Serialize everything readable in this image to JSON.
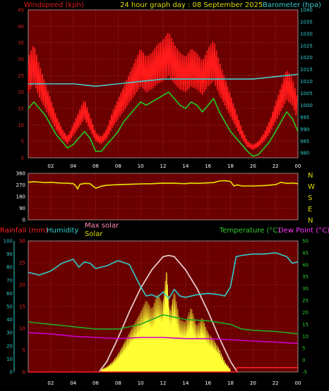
{
  "header": {
    "title": "24 hour graph day : 08 September 2025",
    "left_label": "Windspeed (kph)",
    "right_label": "Barometer (hpa)"
  },
  "colors": {
    "plot_bg": "#6a0000",
    "grid": "#c84a4a",
    "axis_left": "#e01c1c",
    "axis_right": "#33cccc",
    "gust": "#ff1a1a",
    "avg": "#22cc22",
    "baro": "#44cccc",
    "dir": "#e6e600",
    "rain": "#ff2020",
    "humidity": "#33cccc",
    "temp": "#22aa22",
    "dew": "#cc00cc",
    "solar": "#ffff33",
    "max_solar": "#e8c8c8",
    "text_green": "#33cc33",
    "text_magenta": "#ff33ff",
    "text_yellow": "#dddd00",
    "text_pink": "#ff88aa"
  },
  "x_axis": {
    "ticks": [
      "02",
      "04",
      "06",
      "08",
      "10",
      "12",
      "14",
      "16",
      "18",
      "20",
      "22",
      "00"
    ]
  },
  "direction_labels": [
    "N",
    "W",
    "S",
    "E",
    "N"
  ],
  "chart_data": [
    {
      "type": "line",
      "name": "wind-barometer",
      "left_axis": {
        "ticks": [
          0,
          5,
          10,
          15,
          20,
          25,
          30,
          35,
          40,
          45
        ],
        "ylim": [
          0,
          45
        ]
      },
      "right_axis": {
        "ticks": [
          980,
          985,
          990,
          995,
          1000,
          1005,
          1010,
          1015,
          1020,
          1025,
          1030,
          1035,
          1040
        ],
        "ylim": [
          978,
          1040
        ]
      },
      "series": [
        {
          "name": "Windspeed",
          "axis": "left",
          "x": [
            0,
            0.5,
            1,
            1.5,
            2,
            2.5,
            3,
            3.5,
            4,
            4.5,
            5,
            5.5,
            6,
            6.5,
            7,
            7.5,
            8,
            8.5,
            9,
            9.5,
            10,
            10.5,
            11,
            11.5,
            12,
            12.5,
            13,
            13.5,
            14,
            14.5,
            15,
            15.5,
            16,
            16.5,
            17,
            17.5,
            18,
            18.5,
            19,
            19.5,
            20,
            20.5,
            21,
            21.5,
            22,
            22.5,
            23,
            23.5,
            24
          ],
          "values": [
            24,
            27,
            22,
            18,
            14,
            10,
            7,
            5,
            8,
            11,
            14,
            10,
            6,
            5,
            7,
            11,
            14,
            17,
            20,
            23,
            26,
            24,
            25,
            27,
            28,
            30,
            27,
            25,
            24,
            26,
            25,
            23,
            26,
            28,
            23,
            19,
            15,
            11,
            7,
            4,
            3,
            4,
            6,
            9,
            13,
            17,
            21,
            19,
            14
          ]
        },
        {
          "name": "Average wind",
          "axis": "left",
          "x": [
            0,
            0.5,
            1,
            1.5,
            2,
            2.5,
            3,
            3.5,
            4,
            4.5,
            5,
            5.5,
            6,
            6.5,
            7,
            7.5,
            8,
            8.5,
            9,
            9.5,
            10,
            10.5,
            11,
            11.5,
            12,
            12.5,
            13,
            13.5,
            14,
            14.5,
            15,
            15.5,
            16,
            16.5,
            17,
            17.5,
            18,
            18.5,
            19,
            19.5,
            20,
            20.5,
            21,
            21.5,
            22,
            22.5,
            23,
            23.5,
            24
          ],
          "values": [
            15,
            17,
            15,
            13,
            10,
            7,
            5,
            3,
            4,
            6,
            8,
            6,
            2,
            2,
            4,
            6,
            8,
            11,
            13,
            15,
            17,
            16,
            17,
            18,
            19,
            20,
            18,
            16,
            15,
            17,
            16,
            14,
            16,
            18,
            14,
            11,
            8,
            6,
            4,
            2,
            0.5,
            1,
            3,
            5,
            8,
            11,
            14,
            12,
            8
          ]
        },
        {
          "name": "Barometer",
          "axis": "right",
          "x": [
            0,
            2,
            4,
            6,
            8,
            10,
            12,
            14,
            16,
            18,
            20,
            22,
            24
          ],
          "values": [
            1009,
            1009,
            1009,
            1008,
            1009,
            1010,
            1011,
            1011,
            1011,
            1011,
            1011,
            1012,
            1013
          ]
        }
      ]
    },
    {
      "type": "line",
      "name": "wind-direction",
      "left_axis": {
        "ticks": [
          0,
          90,
          180,
          270,
          360
        ],
        "ylim": [
          0,
          360
        ]
      },
      "series": [
        {
          "name": "Direction",
          "x": [
            0,
            0.5,
            1,
            1.5,
            2,
            2.5,
            3,
            3.5,
            4,
            4.2,
            4.4,
            4.6,
            5,
            5.5,
            6,
            6.2,
            6.5,
            7,
            7.5,
            8,
            9,
            10,
            11,
            12,
            13,
            14,
            14.5,
            15,
            15.5,
            16,
            16.5,
            17,
            17.5,
            18,
            18.3,
            18.6,
            19,
            20,
            21,
            22,
            22.5,
            23,
            23.5,
            24
          ],
          "values": [
            290,
            295,
            292,
            288,
            290,
            287,
            284,
            283,
            280,
            265,
            240,
            275,
            282,
            280,
            245,
            250,
            260,
            268,
            270,
            272,
            275,
            278,
            280,
            284,
            283,
            280,
            285,
            282,
            284,
            286,
            288,
            300,
            303,
            296,
            262,
            270,
            262,
            262,
            265,
            272,
            290,
            282,
            285,
            280
          ]
        }
      ]
    },
    {
      "type": "line",
      "name": "rain-humidity-temperature-solar",
      "left_label_rain": "Rainfall (mm)",
      "left_label_humidity": "Humidity",
      "mid_label_max_solar": "Max solar",
      "mid_label_solar": "Solar",
      "right_label_temp": "Temperature (°C)",
      "right_label_dew": "Dew Point (°C)",
      "rain_axis": {
        "ticks": [
          0,
          5,
          10,
          15,
          20,
          25,
          30
        ],
        "ylim": [
          0,
          30
        ]
      },
      "humidity_axis": {
        "ticks": [
          0,
          10,
          20,
          30,
          40,
          50,
          60,
          70,
          80,
          90,
          100
        ],
        "ylim": [
          0,
          100
        ]
      },
      "temp_axis": {
        "ticks": [
          -5,
          0,
          5,
          10,
          15,
          20,
          25,
          30,
          35,
          40,
          45,
          50
        ],
        "ylim": [
          -5,
          50
        ]
      },
      "series": [
        {
          "name": "Humidity",
          "x": [
            0,
            1,
            2,
            3,
            4,
            4.5,
            5,
            5.5,
            6,
            7,
            8,
            9,
            10,
            10.5,
            11,
            11.5,
            12,
            12.5,
            13,
            13.5,
            14,
            15,
            16,
            17,
            17.5,
            18,
            18.5,
            19,
            20,
            21,
            22,
            23,
            23.5,
            24
          ],
          "values": [
            76,
            74,
            77,
            83,
            86,
            80,
            84,
            83,
            79,
            81,
            85,
            82,
            65,
            58,
            59,
            57,
            61,
            56,
            63,
            58,
            57,
            59,
            60,
            59,
            58,
            65,
            88,
            89,
            90,
            90,
            91,
            88,
            83,
            84
          ]
        },
        {
          "name": "Temperature",
          "x": [
            0,
            2,
            4,
            6,
            8,
            10,
            11,
            12,
            13,
            14,
            16,
            18,
            19,
            20,
            22,
            24
          ],
          "values": [
            16,
            15,
            14,
            13,
            13,
            15,
            17,
            19,
            18,
            17,
            16.5,
            15,
            13,
            12.5,
            12,
            11
          ]
        },
        {
          "name": "Dew Point",
          "x": [
            0,
            2,
            4,
            6,
            8,
            10,
            12,
            14,
            16,
            18,
            20,
            22,
            24
          ],
          "values": [
            11.5,
            11,
            10,
            9.5,
            9,
            9.5,
            9.5,
            9,
            9,
            8.5,
            8,
            7.5,
            7
          ]
        },
        {
          "name": "Max solar",
          "x": [
            6.3,
            7,
            8,
            9,
            10,
            11,
            12,
            12.5,
            13,
            14,
            15,
            16,
            17,
            18,
            18.6
          ],
          "values": [
            0,
            8,
            26,
            46,
            64,
            78,
            88,
            89,
            88,
            78,
            64,
            46,
            26,
            8,
            0
          ]
        },
        {
          "name": "Solar",
          "x": [
            6.5,
            7,
            7.5,
            8,
            8.5,
            9,
            9.5,
            10,
            10.5,
            11,
            11.5,
            12,
            12.3,
            12.6,
            13,
            13.5,
            14,
            14.5,
            15,
            15.5,
            16,
            16.5,
            17,
            17.5,
            18
          ],
          "values": [
            2,
            4,
            8,
            14,
            22,
            30,
            38,
            46,
            55,
            48,
            60,
            52,
            80,
            45,
            62,
            40,
            38,
            50,
            35,
            42,
            30,
            25,
            18,
            8,
            2
          ]
        },
        {
          "name": "Rainfall",
          "x": [
            0,
            18.5,
            18.6,
            24
          ],
          "values": [
            0,
            0,
            1,
            1
          ]
        }
      ]
    }
  ]
}
